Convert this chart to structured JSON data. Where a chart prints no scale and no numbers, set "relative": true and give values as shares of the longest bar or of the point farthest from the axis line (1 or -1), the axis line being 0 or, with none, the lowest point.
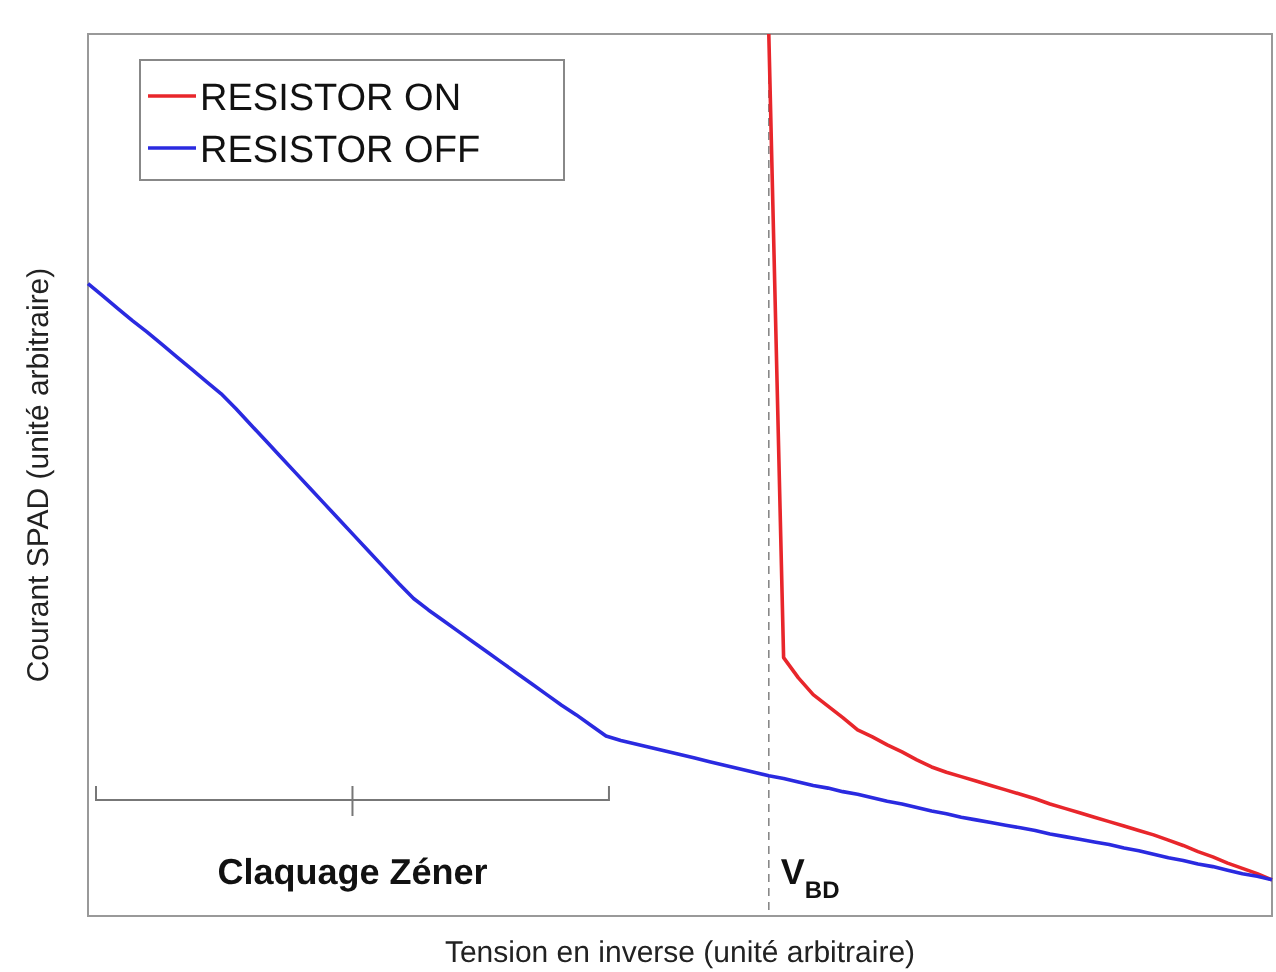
{
  "chart_data": {
    "type": "line",
    "xlabel": "Tension en inverse (unité arbitraire)",
    "ylabel": "Courant SPAD (unité arbitraire)",
    "relative": true,
    "legend": "top left",
    "line_style": "solid",
    "categories": [
      null,
      null,
      null,
      null,
      null,
      null,
      null,
      null,
      null,
      null,
      null,
      null,
      null,
      null,
      null,
      null,
      null,
      null,
      null,
      null,
      null,
      null,
      null,
      null,
      null,
      null,
      null,
      null,
      null,
      null,
      null,
      null,
      null,
      null,
      null,
      null,
      null,
      null,
      null,
      null,
      null,
      null,
      null,
      null,
      null,
      null,
      null,
      null,
      null,
      null,
      null,
      null,
      null,
      null,
      null,
      null,
      null,
      null,
      null,
      null,
      null,
      null,
      null,
      null,
      null,
      null,
      null,
      null,
      null,
      null,
      null,
      null,
      null,
      null,
      null,
      null,
      null,
      null,
      null,
      null,
      null
    ],
    "series": [
      {
        "name": "RESISTOR ON",
        "color": "#e8262b",
        "values": [
          null,
          null,
          null,
          null,
          null,
          null,
          null,
          null,
          null,
          null,
          null,
          null,
          null,
          null,
          null,
          null,
          null,
          null,
          null,
          null,
          null,
          null,
          null,
          null,
          null,
          null,
          null,
          null,
          null,
          null,
          null,
          null,
          null,
          null,
          null,
          null,
          null,
          null,
          null,
          null,
          null,
          null,
          null,
          null,
          null,
          null,
          1,
          0.293,
          0.27,
          0.251,
          0.238,
          0.225,
          0.211,
          0.203,
          0.194,
          0.186,
          0.177,
          0.169,
          0.163,
          0.158,
          0.153,
          0.148,
          0.143,
          0.138,
          0.133,
          0.127,
          0.122,
          0.117,
          0.112,
          0.107,
          0.102,
          0.097,
          0.092,
          0.086,
          0.08,
          0.073,
          0.067,
          0.06,
          0.054,
          0.048,
          0.041
        ]
      },
      {
        "name": "RESISTOR OFF",
        "color": "#2a2ae0",
        "values": [
          0.717,
          0.703,
          0.689,
          0.675,
          0.662,
          0.648,
          0.634,
          0.62,
          0.606,
          0.592,
          0.575,
          0.557,
          0.539,
          0.521,
          0.503,
          0.485,
          0.467,
          0.449,
          0.431,
          0.413,
          0.395,
          0.377,
          0.36,
          0.347,
          0.335,
          0.323,
          0.311,
          0.299,
          0.287,
          0.275,
          0.263,
          0.251,
          0.239,
          0.228,
          0.216,
          0.204,
          0.199,
          0.195,
          0.191,
          0.187,
          0.183,
          0.179,
          0.175,
          0.171,
          0.167,
          0.163,
          0.159,
          0.156,
          0.152,
          0.148,
          0.145,
          0.141,
          0.138,
          0.134,
          0.13,
          0.127,
          0.123,
          0.119,
          0.116,
          0.112,
          0.109,
          0.106,
          0.103,
          0.1,
          0.097,
          0.093,
          0.09,
          0.087,
          0.084,
          0.081,
          0.077,
          0.074,
          0.07,
          0.066,
          0.063,
          0.059,
          0.056,
          0.052,
          0.048,
          0.045,
          0.041
        ]
      }
    ],
    "annotations": [
      "Claquage Zéner",
      "V$_{BD}$"
    ]
  }
}
